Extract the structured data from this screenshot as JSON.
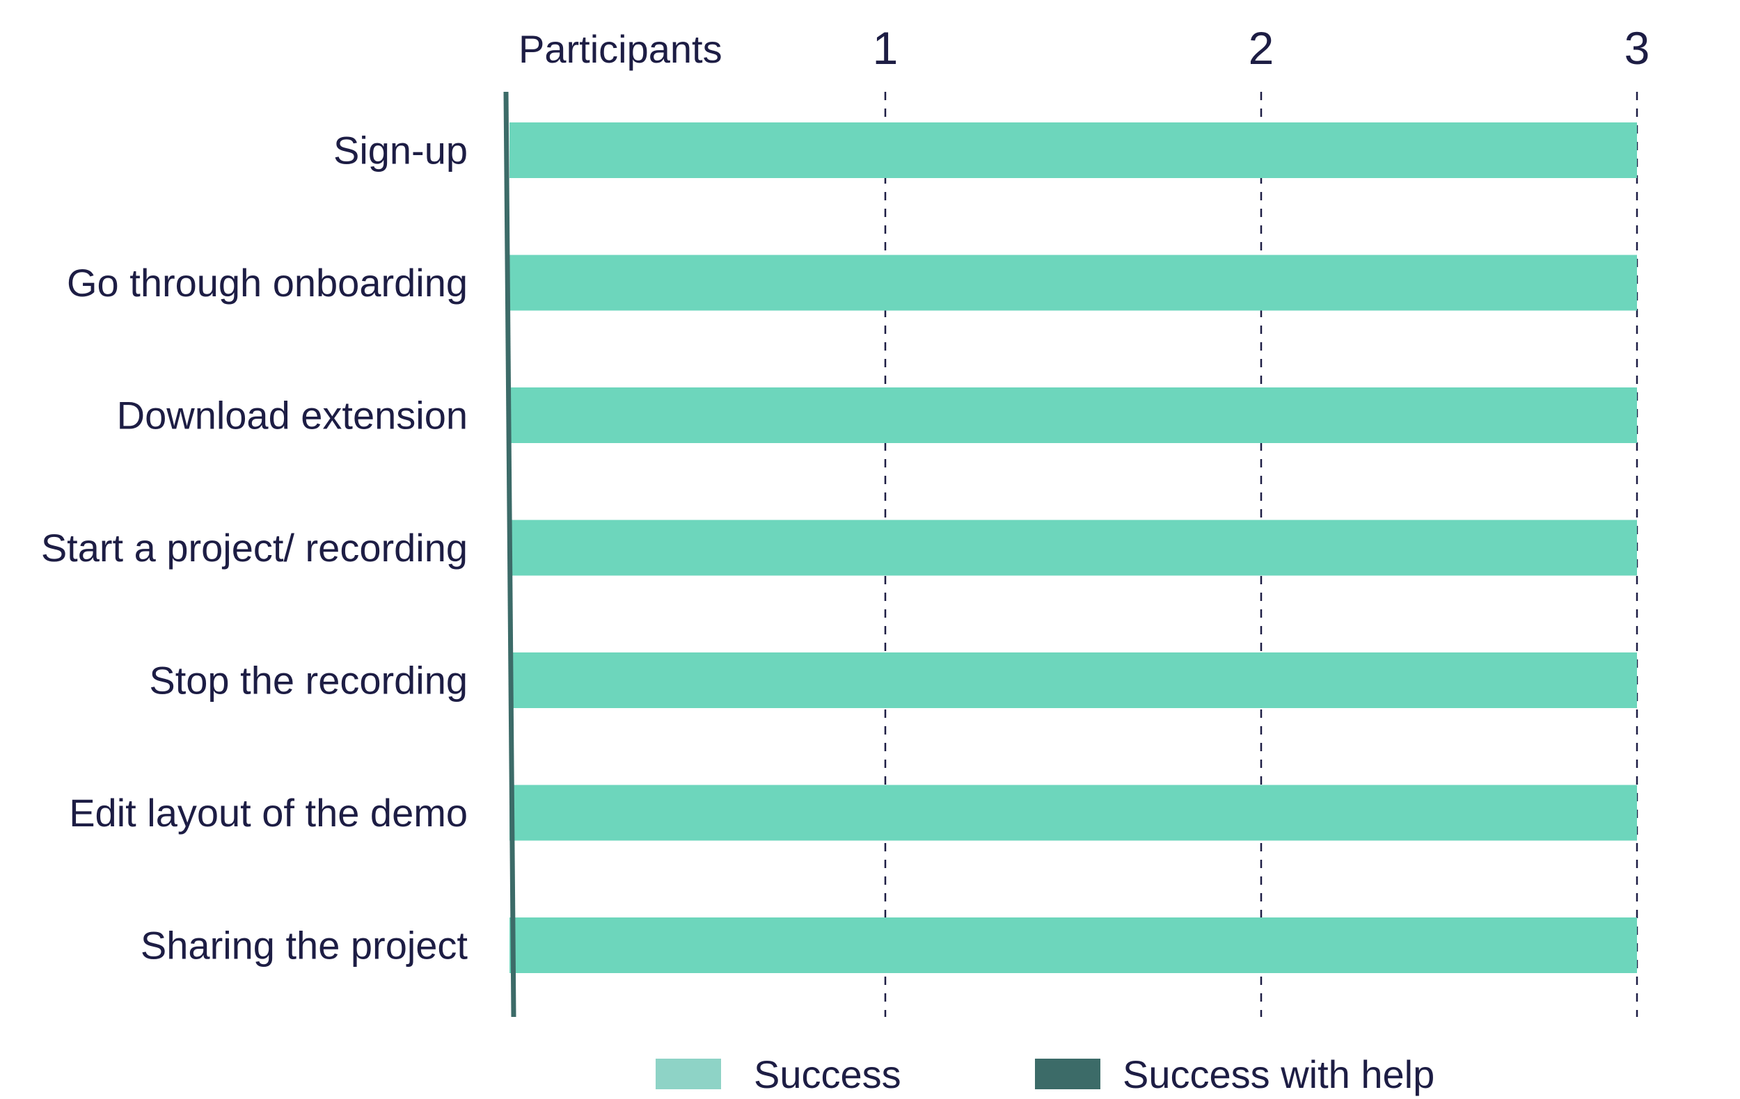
{
  "chart_data": {
    "type": "bar",
    "orientation": "horizontal",
    "stacked": true,
    "axis_title": "Participants",
    "categories": [
      "Sign-up",
      "Go through onboarding",
      "Download extension",
      "Start a project/ recording",
      "Stop the recording",
      "Edit layout of the demo",
      "Sharing the project"
    ],
    "series": [
      {
        "name": "Success",
        "values": [
          3,
          3,
          3,
          3,
          3,
          3,
          3
        ],
        "color": "#6dd6bc",
        "legend_color": "#8ed3c6"
      },
      {
        "name": "Success with help",
        "values": [
          0,
          0,
          0,
          0,
          0,
          0,
          0
        ],
        "color": "#3c6b68"
      }
    ],
    "xlim": [
      0,
      3
    ],
    "xticks": [
      1,
      2,
      3
    ],
    "grid": "vertical-dashed",
    "legend_position": "bottom",
    "axis_color": "#3c6b68"
  }
}
